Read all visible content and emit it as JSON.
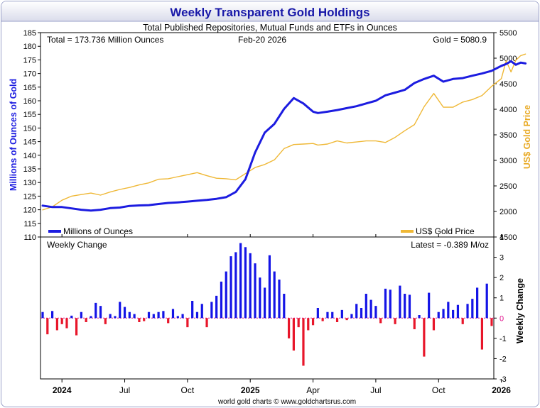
{
  "chart_data": {
    "type": "bar+line",
    "title": "Weekly Transparent Gold Holdings",
    "subtitle": "Total Published Repositories, Mutual Funds and ETFs in Ounces",
    "total_label": "Total = 173.736 Million Ounces",
    "date_label": "Feb-20  2026",
    "gold_label": "Gold = 5080.9",
    "footer": "world gold charts © www.goldchartsrus.com",
    "x_tick_labels": [
      "2024",
      "Jul",
      "Oct",
      "2025",
      "Apr",
      "Jul",
      "Oct",
      "2026"
    ],
    "x_tick_weeks": [
      4,
      17,
      30,
      43,
      56,
      69,
      82,
      95
    ],
    "upper": {
      "ylabel_left": "Millions of Ounces of Gold",
      "ylabel_right": "US$ Gold Price",
      "ylim_left": [
        110,
        185
      ],
      "ylim_right": [
        1500,
        5500
      ],
      "left_ticks": [
        110,
        115,
        120,
        125,
        130,
        135,
        140,
        145,
        150,
        155,
        160,
        165,
        170,
        175,
        180,
        185
      ],
      "right_ticks": [
        1500,
        2000,
        2500,
        3000,
        3500,
        4000,
        4500,
        5000,
        5500
      ],
      "legend_holdings": "Millions of Ounces",
      "legend_gold": "US$ Gold Price",
      "series": [
        {
          "name": "Millions of Ounces",
          "axis": "left",
          "color": "#1c1ce0",
          "x": [
            0,
            2,
            4,
            6,
            8,
            10,
            12,
            14,
            16,
            18,
            20,
            22,
            24,
            26,
            28,
            30,
            32,
            34,
            36,
            38,
            40,
            42,
            44,
            46,
            48,
            50,
            52,
            54,
            56,
            57,
            59,
            61,
            63,
            65,
            67,
            69,
            71,
            73,
            75,
            77,
            79,
            81,
            83,
            85,
            87,
            89,
            91,
            93,
            95,
            96,
            97,
            98,
            99,
            100
          ],
          "values": [
            121.5,
            121,
            121,
            120.5,
            120,
            119.7,
            120,
            120.6,
            120.8,
            121.4,
            121.6,
            121.7,
            122.1,
            122.5,
            122.7,
            123,
            123.3,
            123.6,
            124,
            124.6,
            126.5,
            131.2,
            141,
            148.3,
            151.5,
            157,
            161,
            159,
            156,
            155.5,
            156,
            156.6,
            157.3,
            158,
            159,
            160,
            162,
            163,
            164,
            166.5,
            168,
            169.2,
            167,
            168,
            168.3,
            169.2,
            170,
            171,
            172.8,
            173.5,
            174.5,
            173.2,
            174,
            173.7
          ]
        },
        {
          "name": "US$ Gold Price",
          "axis": "right",
          "color": "#efb836",
          "x": [
            0,
            2,
            4,
            6,
            8,
            10,
            12,
            14,
            16,
            18,
            20,
            22,
            24,
            26,
            28,
            30,
            32,
            34,
            36,
            38,
            40,
            42,
            44,
            46,
            48,
            50,
            52,
            54,
            56,
            57,
            59,
            61,
            63,
            65,
            67,
            69,
            71,
            73,
            75,
            77,
            79,
            81,
            83,
            85,
            87,
            89,
            91,
            93,
            95,
            96,
            97,
            98,
            99,
            100
          ],
          "values": [
            2030,
            2090,
            2220,
            2300,
            2330,
            2360,
            2320,
            2380,
            2430,
            2470,
            2520,
            2560,
            2630,
            2640,
            2680,
            2720,
            2760,
            2700,
            2650,
            2640,
            2620,
            2740,
            2860,
            2920,
            3010,
            3230,
            3310,
            3320,
            3330,
            3300,
            3320,
            3380,
            3340,
            3360,
            3380,
            3380,
            3350,
            3450,
            3580,
            3700,
            4050,
            4310,
            4040,
            4040,
            4140,
            4190,
            4270,
            4450,
            4600,
            4950,
            4730,
            4960,
            5050,
            5080.9
          ]
        }
      ]
    },
    "lower": {
      "title": "Weekly Change",
      "ylabel": "Weekly Change",
      "latest_label": "Latest = -0.389 M/oz",
      "ylim": [
        -3,
        4
      ],
      "ticks": [
        -3,
        -2,
        -1,
        0,
        1,
        2,
        3,
        4
      ],
      "positive_color": "#1414e6",
      "negative_color": "#e8162a",
      "values": [
        0.3,
        -0.8,
        0.35,
        -0.6,
        -0.3,
        -0.5,
        0.12,
        -0.85,
        0.3,
        -0.2,
        0.1,
        0.75,
        0.6,
        -0.3,
        0.2,
        0.1,
        0.8,
        0.55,
        0.3,
        0.2,
        -0.2,
        -0.15,
        0.3,
        0.2,
        0.3,
        0.35,
        -0.25,
        0.45,
        0.1,
        0.2,
        -0.45,
        0.85,
        0.3,
        0.7,
        -0.45,
        0.8,
        1.1,
        1.8,
        2.3,
        3.05,
        3.25,
        3.7,
        3.5,
        3.2,
        2.7,
        2.0,
        1.5,
        3.1,
        2.3,
        1.9,
        1.2,
        -1.0,
        -1.6,
        -0.45,
        -2.35,
        -0.6,
        -0.35,
        0.5,
        -0.15,
        0.3,
        0.3,
        -0.2,
        0.4,
        -0.1,
        0.2,
        0.7,
        0.5,
        1.2,
        0.9,
        0.6,
        -0.25,
        1.45,
        1.4,
        -0.3,
        1.6,
        1.2,
        1.15,
        -0.55,
        0.15,
        -1.9,
        1.25,
        -0.6,
        0.3,
        0.45,
        0.8,
        0.4,
        0.65,
        -0.3,
        0.7,
        0.95,
        1.5,
        -1.55,
        1.7,
        -0.389
      ]
    }
  }
}
